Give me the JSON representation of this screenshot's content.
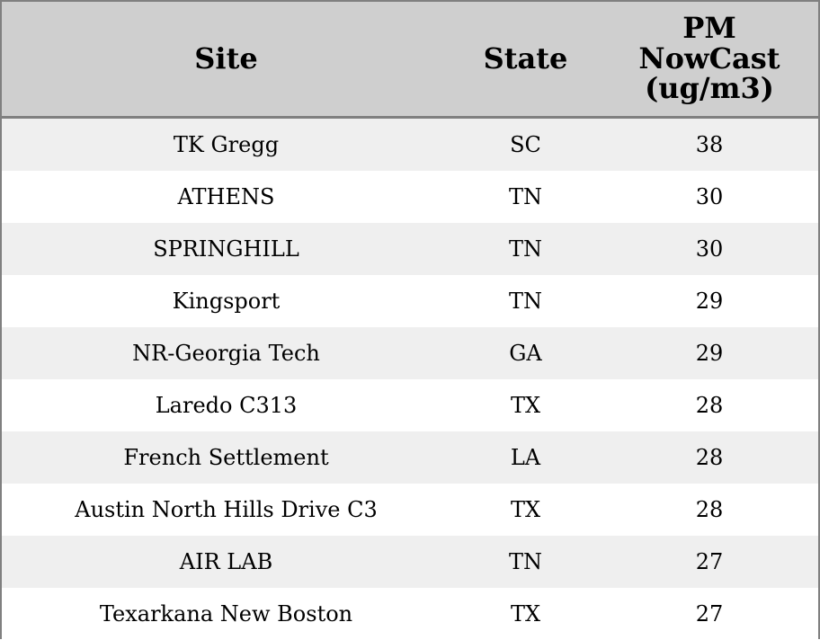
{
  "table": {
    "header": [
      "Site",
      "State",
      "PM NowCast (ug/m3)"
    ],
    "rows": [
      [
        "TK Gregg",
        "SC",
        38
      ],
      [
        "ATHENS",
        "TN",
        30
      ],
      [
        "SPRINGHILL",
        "TN",
        30
      ],
      [
        "Kingsport",
        "TN",
        29
      ],
      [
        "NR-Georgia Tech",
        "GA",
        29
      ],
      [
        "Laredo C313",
        "TX",
        28
      ],
      [
        "French Settlement",
        "LA",
        28
      ],
      [
        "Austin North Hills Drive C3",
        "TX",
        28
      ],
      [
        "AIR LAB",
        "TN",
        27
      ],
      [
        "Texarkana New Boston",
        "TX",
        27
      ]
    ]
  }
}
